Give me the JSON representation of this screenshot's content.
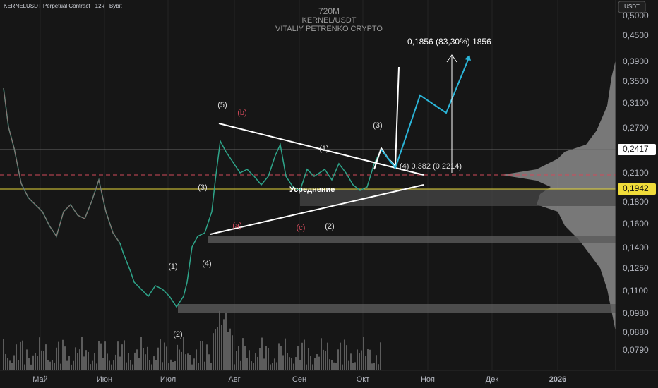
{
  "header": {
    "symbol": "KERNELUSDT Perpetual Contract · 12ч · Bybit",
    "watermark": [
      "720M",
      "KERNEL/USDT",
      "VITALIY PETRENKO CRYPTO"
    ]
  },
  "price_axis": {
    "currency": "USDT",
    "labels": [
      "0,5000",
      "0,4500",
      "0,3900",
      "0,3500",
      "0,3100",
      "0,2700",
      "0,2417",
      "0,2100",
      "0,1942",
      "0,1800",
      "0,1600",
      "0,1400",
      "0,1250",
      "0,1100",
      "0,0980",
      "0,0880",
      "0,0790"
    ]
  },
  "time_axis": {
    "labels": [
      "Май",
      "Июн",
      "Июл",
      "Авг",
      "Сен",
      "Окт",
      "Ноя",
      "Дек",
      "2026"
    ]
  },
  "annotations": [
    "0,1856 (83,30%) 1856",
    "(5)",
    "(b)",
    "(3)",
    "(1)",
    "(4) 0.382 (0.2214)",
    "(3)",
    "Усреднение",
    "(a)",
    "(c)",
    "(2)",
    "(1)",
    "(4)",
    "(2)"
  ]
}
